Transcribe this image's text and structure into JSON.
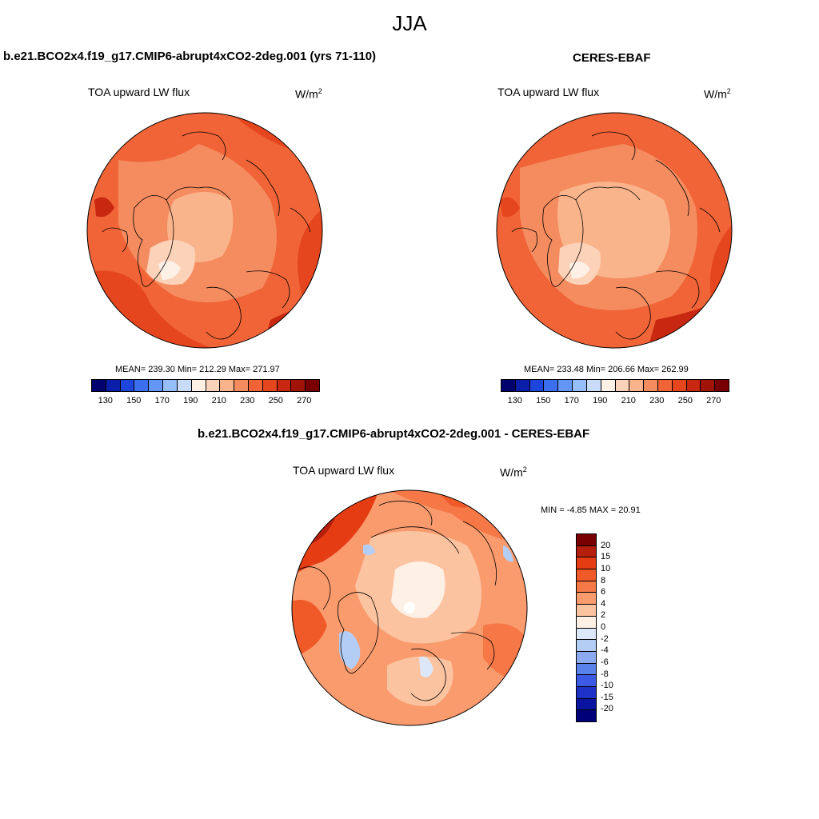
{
  "title": "JJA",
  "panels": [
    {
      "title": "b.e21.BCO2x4.f19_g17.CMIP6-abrupt4xCO2-2deg.001 (yrs 71-110)",
      "variable": "TOA upward LW flux",
      "units_base": "W/m",
      "units_exp": "2",
      "stats": "MEAN= 239.30  Min= 212.29  Max= 271.97",
      "colorbar_labels": [
        "130",
        "150",
        "170",
        "190",
        "210",
        "230",
        "250",
        "270"
      ]
    },
    {
      "title": "CERES-EBAF",
      "variable": "TOA upward LW flux",
      "units_base": "W/m",
      "units_exp": "2",
      "stats": "MEAN= 233.48  Min= 206.66  Max= 262.99",
      "colorbar_labels": [
        "130",
        "150",
        "170",
        "190",
        "210",
        "230",
        "250",
        "270"
      ]
    },
    {
      "title": "b.e21.BCO2x4.f19_g17.CMIP6-abrupt4xCO2-2deg.001 - CERES-EBAF",
      "variable": "TOA upward LW flux",
      "units_base": "W/m",
      "units_exp": "2",
      "stats": "MIN =  -4.85 MAX =  20.91",
      "colorbar_labels": [
        "20",
        "15",
        "10",
        "8",
        "6",
        "4",
        "2",
        "0",
        "-2",
        "-4",
        "-6",
        "-8",
        "-10",
        "-15",
        "-20"
      ]
    }
  ],
  "colors": {
    "abs_scale": [
      "#00006e",
      "#0a1eaa",
      "#1e46dc",
      "#3c6ef0",
      "#6496f5",
      "#96bef8",
      "#c8dcfa",
      "#fff0e6",
      "#fcd2b9",
      "#fab48c",
      "#f58c5f",
      "#f06437",
      "#e6461e",
      "#c8280f",
      "#a01405",
      "#780000"
    ],
    "diff_scale": [
      "#780000",
      "#b41e0a",
      "#e63c14",
      "#f05a28",
      "#f57846",
      "#fa9b6e",
      "#fcc3a0",
      "#fff0e6",
      "#dce8fa",
      "#b4cdf5",
      "#8caaf0",
      "#5a82eb",
      "#3c5ae6",
      "#1e32c8",
      "#0a14a0",
      "#000078"
    ],
    "land_outline": "#000000"
  }
}
